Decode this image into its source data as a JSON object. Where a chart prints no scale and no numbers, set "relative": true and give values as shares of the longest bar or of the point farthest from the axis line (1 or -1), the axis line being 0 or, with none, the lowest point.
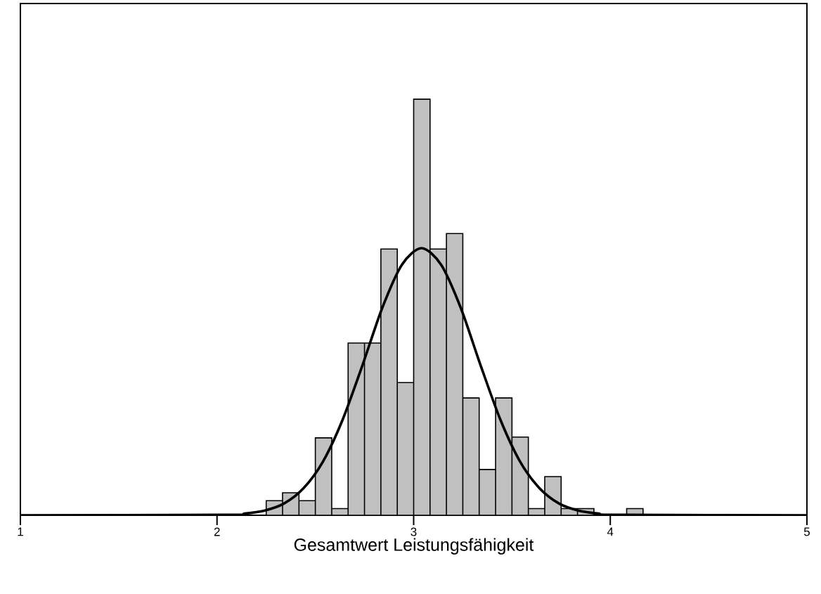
{
  "chart_data": {
    "type": "histogram",
    "xlabel": "Gesamtwert Leistungsfähigkeit",
    "relative": true,
    "color": "#c0c0c0",
    "bins": [
      2.25,
      2.3333,
      2.4167,
      2.5,
      2.5833,
      2.6667,
      2.75,
      2.8333,
      2.9167,
      3.0,
      3.0833,
      3.1667,
      3.25,
      3.3333,
      3.4167,
      3.5,
      3.5833,
      3.6667,
      3.75,
      3.8333,
      3.9167,
      4.0,
      4.0833,
      4.1667
    ],
    "values": [
      0.035,
      0.054,
      0.035,
      0.186,
      0.016,
      0.414,
      0.414,
      0.64,
      0.319,
      1,
      0.64,
      0.677,
      0.282,
      0.11,
      0.282,
      0.188,
      0.016,
      0.093,
      0.016,
      0.016,
      0,
      0,
      0.016
    ],
    "xlim": [
      1,
      5
    ],
    "xticks": [
      1,
      2,
      3,
      4,
      5
    ],
    "series": [
      {
        "type": "line",
        "color": "#000000",
        "x": [
          1,
          2.04,
          2.14,
          2.24,
          2.34,
          2.44,
          2.54,
          2.64,
          2.74,
          2.84,
          2.94,
          3.04,
          3.14,
          3.24,
          3.34,
          3.44,
          3.54,
          3.64,
          3.74,
          3.84,
          3.94,
          4.04,
          5
        ],
        "values": [
          0,
          0.001,
          0.004,
          0.011,
          0.028,
          0.065,
          0.13,
          0.231,
          0.361,
          0.498,
          0.602,
          0.642,
          0.602,
          0.498,
          0.361,
          0.231,
          0.13,
          0.065,
          0.028,
          0.011,
          0.004,
          0.001,
          0
        ]
      }
    ]
  }
}
